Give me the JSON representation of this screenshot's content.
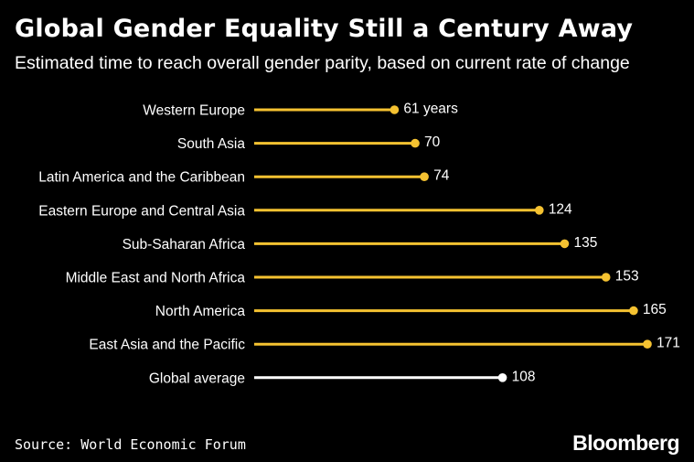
{
  "title": "Global Gender Equality Still a Century Away",
  "subtitle": "Estimated time to reach overall gender parity, based on current rate of change",
  "source": "Source: World Economic Forum",
  "brand": "Bloomberg",
  "colors": {
    "background": "#000000",
    "accent": "#f5c231",
    "highlight": "#ffffff"
  },
  "chart_data": {
    "type": "lollipop",
    "categories": [
      "Western Europe",
      "South Asia",
      "Latin America and the Caribbean",
      "Eastern Europe and Central Asia",
      "Sub-Saharan Africa",
      "Middle East and North Africa",
      "North America",
      "East Asia and the Pacific",
      "Global average"
    ],
    "values": [
      61,
      70,
      74,
      124,
      135,
      153,
      165,
      171,
      108
    ],
    "value_labels": [
      "61 years",
      "70",
      "74",
      "124",
      "135",
      "153",
      "165",
      "171",
      "108"
    ],
    "highlighted_category": "Global average",
    "value_unit": "years",
    "xlim": [
      0,
      171
    ]
  }
}
